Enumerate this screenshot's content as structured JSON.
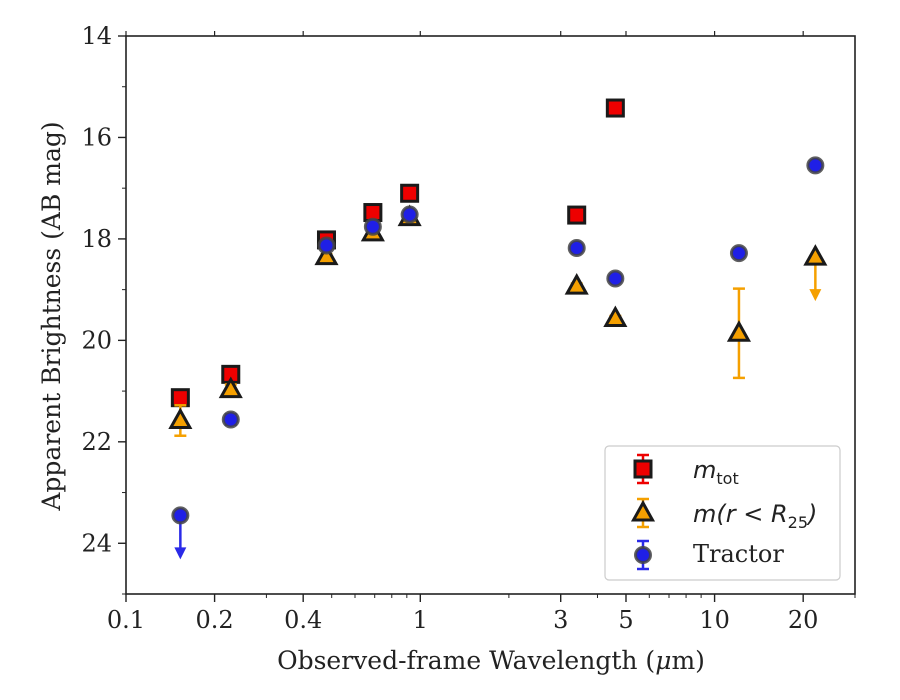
{
  "chart_data": {
    "type": "scatter",
    "xlabel_main": "Observed-frame Wavelength (",
    "xlabel_mu": "μ",
    "xlabel_tail": "m)",
    "ylabel": "Apparent Brightness (AB mag)",
    "x_scale": "log",
    "xlim": [
      0.1,
      30
    ],
    "ylim": [
      25,
      14
    ],
    "y_inverted": true,
    "x_ticks": [
      {
        "value": 0.1,
        "label": "0.1"
      },
      {
        "value": 0.2,
        "label": "0.2"
      },
      {
        "value": 0.4,
        "label": "0.4"
      },
      {
        "value": 1,
        "label": "1"
      },
      {
        "value": 3,
        "label": "3"
      },
      {
        "value": 5,
        "label": "5"
      },
      {
        "value": 10,
        "label": "10"
      },
      {
        "value": 20,
        "label": "20"
      }
    ],
    "y_ticks": [
      {
        "value": 14,
        "label": "14"
      },
      {
        "value": 16,
        "label": "16"
      },
      {
        "value": 18,
        "label": "18"
      },
      {
        "value": 20,
        "label": "20"
      },
      {
        "value": 22,
        "label": "22"
      },
      {
        "value": 24,
        "label": "24"
      }
    ],
    "legend_placement": "lower-right",
    "series": [
      {
        "name": "m_tot",
        "marker": "square",
        "color": "#ee0000",
        "errcolor": "#ee0000",
        "points": [
          {
            "x": 0.153,
            "y": 21.13,
            "err": 0.1
          },
          {
            "x": 0.227,
            "y": 20.67,
            "err": 0.1
          },
          {
            "x": 0.48,
            "y": 18.02,
            "err": 0.05
          },
          {
            "x": 0.69,
            "y": 17.48,
            "err": 0.05
          },
          {
            "x": 0.92,
            "y": 17.1,
            "err": 0.05
          },
          {
            "x": 3.4,
            "y": 17.53,
            "err": 0.05
          },
          {
            "x": 4.6,
            "y": 15.42,
            "err": 0.05
          }
        ]
      },
      {
        "name": "m(r < R25)",
        "marker": "triangle",
        "color": "#f5a000",
        "errcolor": "#f5a000",
        "points": [
          {
            "x": 0.153,
            "y": 21.58,
            "err": 0.3
          },
          {
            "x": 0.227,
            "y": 20.97,
            "err": 0.1
          },
          {
            "x": 0.48,
            "y": 18.35,
            "err": 0.05
          },
          {
            "x": 0.69,
            "y": 17.88,
            "err": 0.05
          },
          {
            "x": 0.92,
            "y": 17.58,
            "err": 0.05
          },
          {
            "x": 3.4,
            "y": 18.93,
            "err": 0.05
          },
          {
            "x": 4.6,
            "y": 19.57,
            "err": 0.05
          },
          {
            "x": 12.1,
            "y": 19.86,
            "err": 0.88
          },
          {
            "x": 22.0,
            "y": 18.36,
            "upper_limit": true
          }
        ]
      },
      {
        "name": "Tractor",
        "marker": "circle",
        "color": "#1f1fe6",
        "errcolor": "#2a2ae8",
        "points": [
          {
            "x": 0.153,
            "y": 23.45,
            "upper_limit": true
          },
          {
            "x": 0.227,
            "y": 21.56,
            "err": 0.1
          },
          {
            "x": 0.48,
            "y": 18.13,
            "err": 0.05
          },
          {
            "x": 0.69,
            "y": 17.76,
            "err": 0.05
          },
          {
            "x": 0.92,
            "y": 17.52,
            "err": 0.05
          },
          {
            "x": 3.4,
            "y": 18.18,
            "err": 0.05
          },
          {
            "x": 4.6,
            "y": 18.78,
            "err": 0.05
          },
          {
            "x": 12.1,
            "y": 18.28,
            "err": 0.05
          },
          {
            "x": 22.0,
            "y": 16.55,
            "err": 0.05
          }
        ]
      }
    ]
  },
  "legend": {
    "entry1_base": "m",
    "entry1_sub": "tot",
    "entry2_pre": "m(r < R",
    "entry2_sub": "25",
    "entry2_post": ")",
    "entry3": "Tractor"
  }
}
